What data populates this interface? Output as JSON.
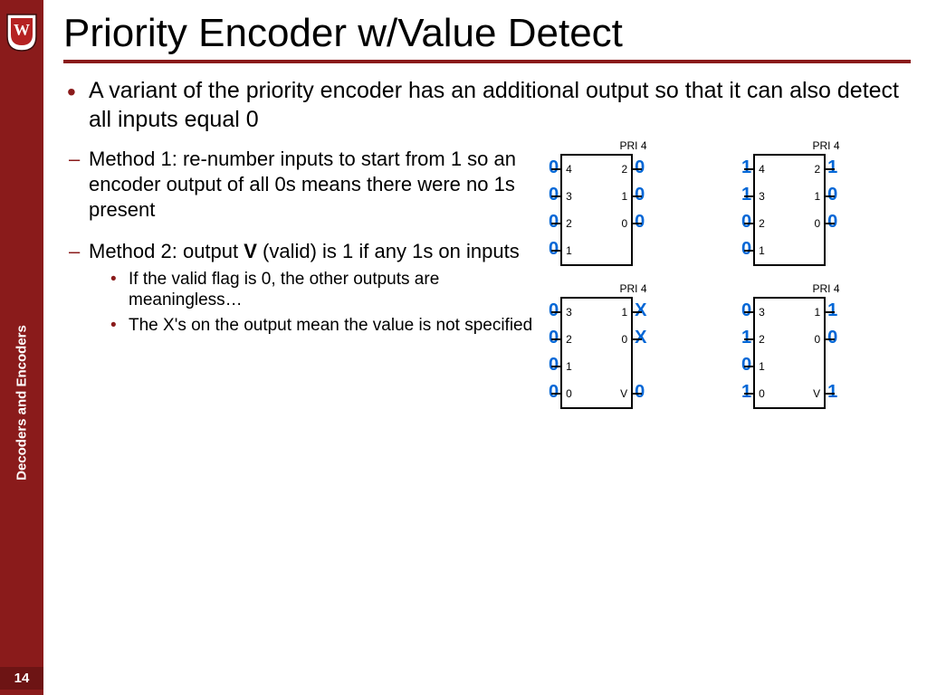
{
  "sidebar": {
    "label": "Decoders and Encoders",
    "page_number": "14",
    "accent_color": "#8a1b1b"
  },
  "title": "Priority Encoder w/Value Detect",
  "bullet_main": "A variant of the priority encoder has an additional output so that it can also detect all inputs equal 0",
  "method1": "Method 1: re-number inputs to start from 1 so an encoder output of all 0s means there were no 1s present",
  "method2_lead": "Method 2: output ",
  "method2_bold": "V",
  "method2_tail": " (valid) is 1 if any 1s on inputs",
  "method2_sub1": "If the valid flag is 0, the other outputs are meaningless…",
  "method2_sub2": "The X's on the output mean the value is not specified",
  "signal_color": "#0066d6",
  "chips": {
    "chip_title": "PRI 4",
    "top_left": {
      "left_pins": [
        "4",
        "3",
        "2",
        "1"
      ],
      "right_pins": [
        "2",
        "1",
        "0"
      ],
      "inputs": [
        "0",
        "0",
        "0",
        "0"
      ],
      "outputs": [
        "0",
        "0",
        "0"
      ]
    },
    "top_right": {
      "left_pins": [
        "4",
        "3",
        "2",
        "1"
      ],
      "right_pins": [
        "2",
        "1",
        "0"
      ],
      "inputs": [
        "1",
        "1",
        "0",
        "0"
      ],
      "outputs": [
        "1",
        "0",
        "0"
      ]
    },
    "bot_left": {
      "left_pins": [
        "3",
        "2",
        "1",
        "0"
      ],
      "right_pins": [
        "1",
        "0",
        "",
        "V"
      ],
      "inputs": [
        "0",
        "0",
        "0",
        "0"
      ],
      "outputs": [
        "X",
        "X",
        "",
        "0"
      ]
    },
    "bot_right": {
      "left_pins": [
        "3",
        "2",
        "1",
        "0"
      ],
      "right_pins": [
        "1",
        "0",
        "",
        "V"
      ],
      "inputs": [
        "0",
        "1",
        "0",
        "1"
      ],
      "outputs": [
        "1",
        "0",
        "",
        "1"
      ]
    }
  }
}
